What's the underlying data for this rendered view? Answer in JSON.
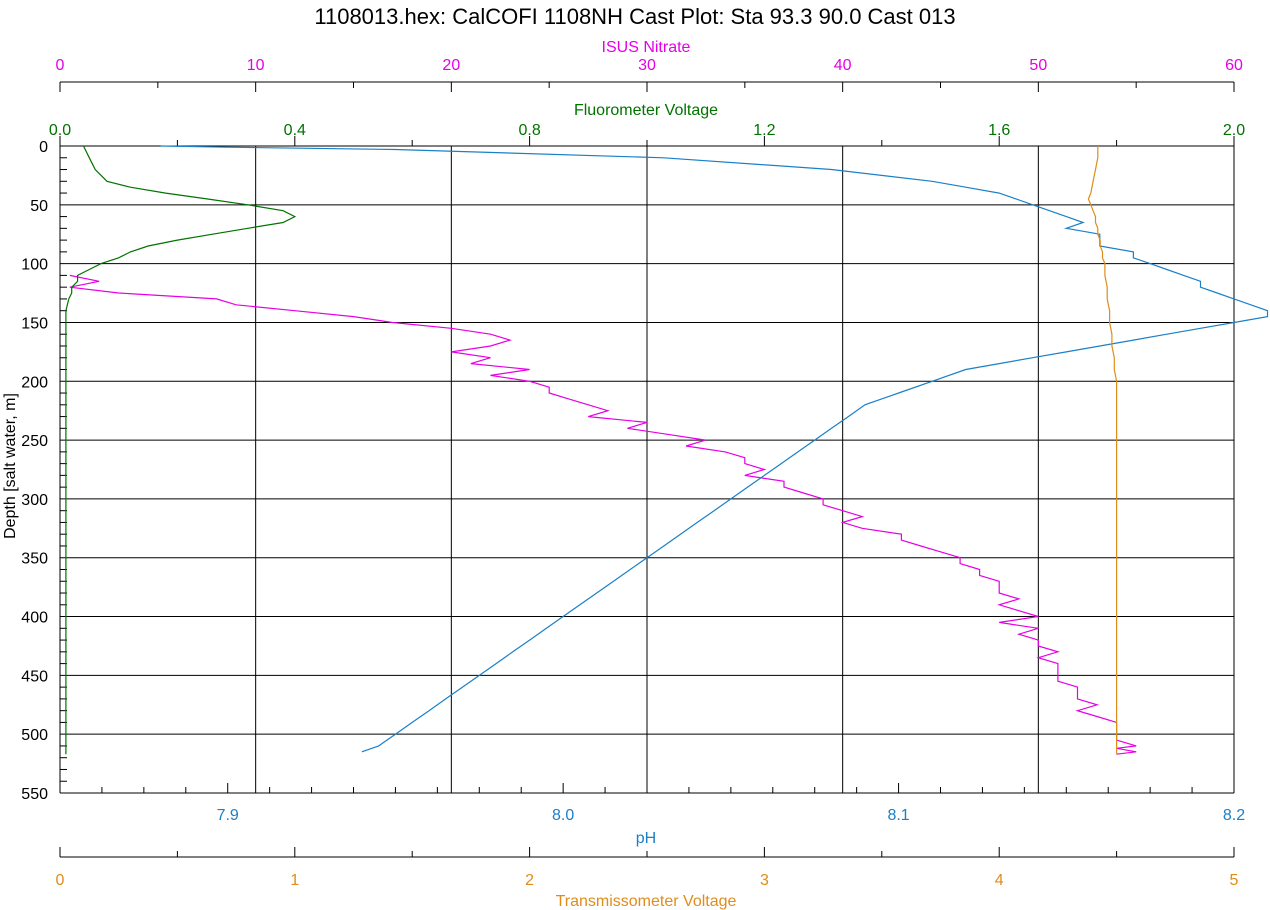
{
  "chart_data": {
    "type": "line",
    "title": "1108013.hex:  CalCOFI 1108NH Cast Plot: Sta 93.3 90.0 Cast 013",
    "colors": {
      "nitrate": "#e600e6",
      "fluorometer": "#007300",
      "ph": "#1a80c8",
      "transmissometer": "#e08c1a",
      "axis": "#000000"
    },
    "y_axis": {
      "label": "Depth [salt water, m]",
      "range": [
        0,
        550
      ],
      "inverted": true,
      "ticks": [
        "0",
        "50",
        "100",
        "150",
        "200",
        "250",
        "300",
        "350",
        "400",
        "450",
        "500",
        "550"
      ]
    },
    "x_axes": {
      "nitrate": {
        "label": "ISUS Nitrate",
        "position": "top",
        "range": [
          0,
          60
        ],
        "ticks": [
          "0",
          "10",
          "20",
          "30",
          "40",
          "50",
          "60"
        ]
      },
      "fluorometer": {
        "label": "Fluorometer Voltage",
        "position": "top",
        "range": [
          0,
          2
        ],
        "ticks": [
          "0.0",
          "0.4",
          "0.8",
          "1.2",
          "1.6",
          "2.0"
        ]
      },
      "ph": {
        "label": "pH",
        "position": "bottom",
        "range": [
          7.85,
          8.2
        ],
        "ticks": [
          "7.9",
          "8.0",
          "8.1",
          "8.2"
        ]
      },
      "transmissometer": {
        "label": "Transmissometer Voltage",
        "position": "bottom",
        "range": [
          0,
          5
        ],
        "ticks": [
          "0",
          "1",
          "2",
          "3",
          "4",
          "5"
        ]
      }
    },
    "grid": true,
    "series": [
      {
        "name": "ISUS Nitrate",
        "axis": "nitrate",
        "points": [
          [
            0.5,
            110
          ],
          [
            2,
            115
          ],
          [
            0.5,
            120
          ],
          [
            3,
            125
          ],
          [
            8,
            130
          ],
          [
            9,
            135
          ],
          [
            12,
            140
          ],
          [
            15,
            145
          ],
          [
            17,
            150
          ],
          [
            20,
            155
          ],
          [
            22,
            160
          ],
          [
            23,
            165
          ],
          [
            22,
            170
          ],
          [
            20,
            175
          ],
          [
            22,
            180
          ],
          [
            21,
            185
          ],
          [
            24,
            190
          ],
          [
            22,
            195
          ],
          [
            24,
            200
          ],
          [
            25,
            205
          ],
          [
            25,
            210
          ],
          [
            26,
            215
          ],
          [
            27,
            220
          ],
          [
            28,
            225
          ],
          [
            27,
            230
          ],
          [
            30,
            235
          ],
          [
            29,
            240
          ],
          [
            31,
            245
          ],
          [
            33,
            250
          ],
          [
            32,
            255
          ],
          [
            34,
            260
          ],
          [
            35,
            265
          ],
          [
            35,
            270
          ],
          [
            36,
            275
          ],
          [
            35,
            280
          ],
          [
            37,
            285
          ],
          [
            37,
            290
          ],
          [
            38,
            295
          ],
          [
            39,
            300
          ],
          [
            39,
            305
          ],
          [
            40,
            310
          ],
          [
            41,
            315
          ],
          [
            40,
            320
          ],
          [
            41,
            325
          ],
          [
            43,
            330
          ],
          [
            43,
            335
          ],
          [
            44,
            340
          ],
          [
            45,
            345
          ],
          [
            46,
            350
          ],
          [
            46,
            355
          ],
          [
            47,
            360
          ],
          [
            47,
            365
          ],
          [
            48,
            370
          ],
          [
            48,
            375
          ],
          [
            48,
            380
          ],
          [
            49,
            385
          ],
          [
            48,
            390
          ],
          [
            49,
            395
          ],
          [
            50,
            400
          ],
          [
            48,
            405
          ],
          [
            50,
            410
          ],
          [
            49,
            415
          ],
          [
            50,
            420
          ],
          [
            50,
            425
          ],
          [
            51,
            430
          ],
          [
            50,
            435
          ],
          [
            51,
            440
          ],
          [
            51,
            445
          ],
          [
            51,
            450
          ],
          [
            51,
            455
          ],
          [
            52,
            460
          ],
          [
            52,
            465
          ],
          [
            52,
            470
          ],
          [
            53,
            475
          ],
          [
            52,
            480
          ],
          [
            53,
            485
          ],
          [
            54,
            490
          ],
          [
            54,
            495
          ],
          [
            54,
            500
          ],
          [
            54,
            505
          ],
          [
            55,
            510
          ],
          [
            54,
            512
          ],
          [
            55,
            515
          ],
          [
            54,
            517
          ]
        ]
      },
      {
        "name": "Fluorometer Voltage",
        "axis": "fluorometer",
        "points": [
          [
            0.04,
            0
          ],
          [
            0.05,
            10
          ],
          [
            0.06,
            20
          ],
          [
            0.08,
            30
          ],
          [
            0.12,
            35
          ],
          [
            0.18,
            40
          ],
          [
            0.25,
            45
          ],
          [
            0.32,
            50
          ],
          [
            0.38,
            55
          ],
          [
            0.4,
            60
          ],
          [
            0.38,
            65
          ],
          [
            0.32,
            70
          ],
          [
            0.26,
            75
          ],
          [
            0.2,
            80
          ],
          [
            0.15,
            85
          ],
          [
            0.12,
            90
          ],
          [
            0.1,
            95
          ],
          [
            0.07,
            100
          ],
          [
            0.05,
            105
          ],
          [
            0.03,
            110
          ],
          [
            0.03,
            115
          ],
          [
            0.02,
            120
          ],
          [
            0.02,
            125
          ],
          [
            0.015,
            130
          ],
          [
            0.01,
            140
          ],
          [
            0.01,
            150
          ],
          [
            0.01,
            200
          ],
          [
            0.01,
            250
          ],
          [
            0.01,
            300
          ],
          [
            0.01,
            350
          ],
          [
            0.01,
            400
          ],
          [
            0.01,
            450
          ],
          [
            0.01,
            500
          ],
          [
            0.01,
            517
          ]
        ]
      },
      {
        "name": "pH",
        "axis": "ph",
        "points": [
          [
            7.88,
            0
          ],
          [
            7.9,
            1
          ],
          [
            7.95,
            3
          ],
          [
            8.03,
            10
          ],
          [
            8.08,
            20
          ],
          [
            8.11,
            30
          ],
          [
            8.12,
            35
          ],
          [
            8.13,
            40
          ],
          [
            8.135,
            45
          ],
          [
            8.14,
            50
          ],
          [
            8.145,
            55
          ],
          [
            8.15,
            60
          ],
          [
            8.155,
            65
          ],
          [
            8.15,
            70
          ],
          [
            8.16,
            75
          ],
          [
            8.16,
            80
          ],
          [
            8.16,
            85
          ],
          [
            8.17,
            90
          ],
          [
            8.17,
            95
          ],
          [
            8.175,
            100
          ],
          [
            8.18,
            105
          ],
          [
            8.185,
            110
          ],
          [
            8.19,
            115
          ],
          [
            8.19,
            120
          ],
          [
            8.195,
            125
          ],
          [
            8.2,
            130
          ],
          [
            8.205,
            135
          ],
          [
            8.21,
            140
          ],
          [
            8.21,
            145
          ],
          [
            8.2,
            150
          ],
          [
            8.19,
            155
          ],
          [
            8.18,
            160
          ],
          [
            8.17,
            165
          ],
          [
            8.16,
            170
          ],
          [
            8.15,
            175
          ],
          [
            8.14,
            180
          ],
          [
            8.13,
            185
          ],
          [
            8.12,
            190
          ],
          [
            8.11,
            200
          ],
          [
            8.1,
            210
          ],
          [
            8.09,
            220
          ],
          [
            8.085,
            230
          ],
          [
            8.08,
            240
          ],
          [
            8.075,
            250
          ],
          [
            8.07,
            260
          ],
          [
            8.065,
            270
          ],
          [
            8.06,
            280
          ],
          [
            8.055,
            290
          ],
          [
            8.05,
            300
          ],
          [
            8.045,
            310
          ],
          [
            8.04,
            320
          ],
          [
            8.035,
            330
          ],
          [
            8.03,
            340
          ],
          [
            8.025,
            350
          ],
          [
            8.02,
            360
          ],
          [
            8.015,
            370
          ],
          [
            8.01,
            380
          ],
          [
            8.005,
            390
          ],
          [
            8.0,
            400
          ],
          [
            7.995,
            410
          ],
          [
            7.99,
            420
          ],
          [
            7.985,
            430
          ],
          [
            7.98,
            440
          ],
          [
            7.975,
            450
          ],
          [
            7.97,
            460
          ],
          [
            7.965,
            470
          ],
          [
            7.96,
            480
          ],
          [
            7.955,
            490
          ],
          [
            7.95,
            500
          ],
          [
            7.945,
            510
          ],
          [
            7.94,
            515
          ]
        ]
      },
      {
        "name": "Transmissometer Voltage",
        "axis": "transmissometer",
        "points": [
          [
            4.42,
            0
          ],
          [
            4.42,
            10
          ],
          [
            4.41,
            20
          ],
          [
            4.4,
            30
          ],
          [
            4.39,
            40
          ],
          [
            4.38,
            45
          ],
          [
            4.39,
            50
          ],
          [
            4.4,
            55
          ],
          [
            4.41,
            60
          ],
          [
            4.41,
            65
          ],
          [
            4.42,
            70
          ],
          [
            4.42,
            75
          ],
          [
            4.43,
            80
          ],
          [
            4.43,
            85
          ],
          [
            4.44,
            90
          ],
          [
            4.44,
            95
          ],
          [
            4.45,
            100
          ],
          [
            4.45,
            110
          ],
          [
            4.46,
            120
          ],
          [
            4.46,
            130
          ],
          [
            4.47,
            140
          ],
          [
            4.47,
            150
          ],
          [
            4.48,
            160
          ],
          [
            4.48,
            170
          ],
          [
            4.49,
            180
          ],
          [
            4.49,
            190
          ],
          [
            4.5,
            200
          ],
          [
            4.5,
            220
          ],
          [
            4.5,
            240
          ],
          [
            4.5,
            260
          ],
          [
            4.5,
            280
          ],
          [
            4.5,
            300
          ],
          [
            4.5,
            320
          ],
          [
            4.5,
            340
          ],
          [
            4.5,
            360
          ],
          [
            4.5,
            380
          ],
          [
            4.5,
            400
          ],
          [
            4.5,
            420
          ],
          [
            4.5,
            440
          ],
          [
            4.5,
            460
          ],
          [
            4.5,
            480
          ],
          [
            4.5,
            500
          ],
          [
            4.5,
            510
          ],
          [
            4.5,
            517
          ]
        ]
      }
    ]
  }
}
